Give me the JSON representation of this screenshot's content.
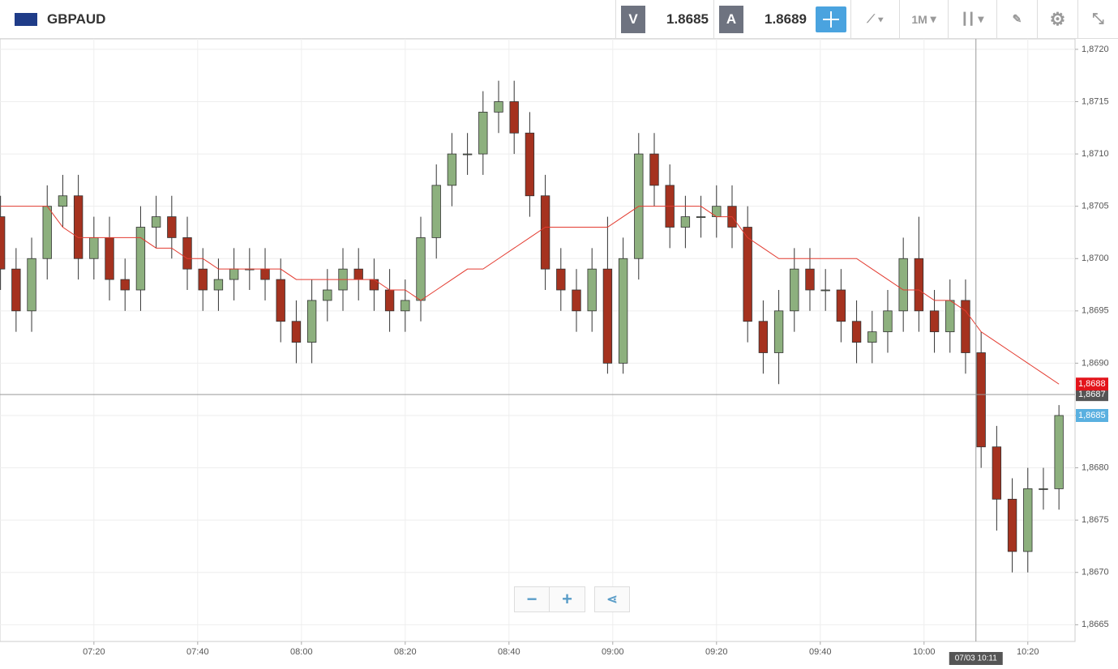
{
  "toolbar": {
    "symbol": "GBPAUD",
    "bid_label": "V",
    "bid": "1.8685",
    "ask_label": "A",
    "ask": "1.8689",
    "timeframe": "1M"
  },
  "chart_data": {
    "type": "candlestick",
    "x": [
      2,
      5,
      8,
      11,
      14,
      17,
      20,
      23,
      26,
      29,
      32,
      35,
      38,
      41,
      44,
      47,
      50,
      53,
      56,
      59,
      62,
      65,
      68,
      71,
      74,
      77,
      80,
      83,
      86,
      89,
      92,
      95,
      98,
      101,
      104,
      107,
      110,
      113,
      116,
      119,
      122,
      125,
      128,
      131,
      134,
      137,
      140,
      143,
      146,
      149,
      152,
      155,
      158,
      161,
      164,
      167,
      170,
      173,
      176,
      179,
      182,
      185,
      188,
      191,
      194,
      197,
      200,
      203,
      206
    ],
    "open": [
      1.8704,
      1.8699,
      1.8695,
      1.87,
      1.8705,
      1.8706,
      1.87,
      1.8702,
      1.8698,
      1.8697,
      1.8703,
      1.8704,
      1.8702,
      1.8699,
      1.8697,
      1.8698,
      1.8699,
      1.8699,
      1.8698,
      1.8694,
      1.8692,
      1.8696,
      1.8697,
      1.8699,
      1.8698,
      1.8697,
      1.8695,
      1.8696,
      1.8702,
      1.8707,
      1.871,
      1.871,
      1.8714,
      1.8715,
      1.8712,
      1.8706,
      1.8699,
      1.8697,
      1.8695,
      1.8699,
      1.869,
      1.87,
      1.871,
      1.8707,
      1.8703,
      1.8704,
      1.8704,
      1.8705,
      1.8703,
      1.8694,
      1.8691,
      1.8695,
      1.8699,
      1.8697,
      1.8697,
      1.8694,
      1.8692,
      1.8693,
      1.8695,
      1.87,
      1.8695,
      1.8693,
      1.8696,
      1.8691,
      1.8682,
      1.8677,
      1.8672,
      1.8678,
      1.8678
    ],
    "high": [
      1.8706,
      1.8701,
      1.8702,
      1.8707,
      1.8708,
      1.8708,
      1.8704,
      1.8704,
      1.87,
      1.8705,
      1.8706,
      1.8706,
      1.8704,
      1.8701,
      1.87,
      1.8701,
      1.8701,
      1.8701,
      1.87,
      1.8696,
      1.8698,
      1.8699,
      1.8701,
      1.8701,
      1.87,
      1.8699,
      1.8698,
      1.8704,
      1.8709,
      1.8712,
      1.8712,
      1.8716,
      1.8717,
      1.8717,
      1.8714,
      1.8708,
      1.8701,
      1.8699,
      1.8701,
      1.8704,
      1.8702,
      1.8712,
      1.8712,
      1.8709,
      1.8706,
      1.8706,
      1.8707,
      1.8707,
      1.8705,
      1.8696,
      1.8697,
      1.8701,
      1.8701,
      1.8699,
      1.8699,
      1.8696,
      1.8695,
      1.8697,
      1.8702,
      1.8704,
      1.8697,
      1.8698,
      1.8698,
      1.8693,
      1.8684,
      1.8679,
      1.868,
      1.868,
      1.8686
    ],
    "low": [
      1.8697,
      1.8693,
      1.8693,
      1.8698,
      1.8703,
      1.8698,
      1.8698,
      1.8696,
      1.8695,
      1.8695,
      1.8701,
      1.87,
      1.8697,
      1.8695,
      1.8695,
      1.8696,
      1.8697,
      1.8696,
      1.8692,
      1.869,
      1.869,
      1.8694,
      1.8695,
      1.8696,
      1.8695,
      1.8693,
      1.8693,
      1.8694,
      1.87,
      1.8705,
      1.8708,
      1.8708,
      1.8712,
      1.871,
      1.8704,
      1.8697,
      1.8695,
      1.8693,
      1.8693,
      1.8689,
      1.8689,
      1.8698,
      1.8705,
      1.8701,
      1.8701,
      1.8702,
      1.8702,
      1.8701,
      1.8692,
      1.8689,
      1.8688,
      1.8693,
      1.8695,
      1.8695,
      1.8692,
      1.869,
      1.869,
      1.8691,
      1.8693,
      1.8693,
      1.8691,
      1.8691,
      1.8689,
      1.868,
      1.8674,
      1.867,
      1.867,
      1.8676,
      1.8676
    ],
    "close": [
      1.8699,
      1.8695,
      1.87,
      1.8705,
      1.8706,
      1.87,
      1.8702,
      1.8698,
      1.8697,
      1.8703,
      1.8704,
      1.8702,
      1.8699,
      1.8697,
      1.8698,
      1.8699,
      1.8699,
      1.8698,
      1.8694,
      1.8692,
      1.8696,
      1.8697,
      1.8699,
      1.8698,
      1.8697,
      1.8695,
      1.8696,
      1.8702,
      1.8707,
      1.871,
      1.871,
      1.8714,
      1.8715,
      1.8712,
      1.8706,
      1.8699,
      1.8697,
      1.8695,
      1.8699,
      1.869,
      1.87,
      1.871,
      1.8707,
      1.8703,
      1.8704,
      1.8704,
      1.8705,
      1.8703,
      1.8694,
      1.8691,
      1.8695,
      1.8699,
      1.8697,
      1.8697,
      1.8694,
      1.8692,
      1.8693,
      1.8695,
      1.87,
      1.8695,
      1.8693,
      1.8696,
      1.8691,
      1.8682,
      1.8677,
      1.8672,
      1.8678,
      1.8678,
      1.8685
    ],
    "up_color": "#8db07e",
    "down_color": "#a5321f",
    "overlay": {
      "color": "#e33b30",
      "values": [
        1.8705,
        1.8705,
        1.8705,
        1.8705,
        1.8703,
        1.8702,
        1.8702,
        1.8702,
        1.8702,
        1.8702,
        1.8701,
        1.8701,
        1.87,
        1.87,
        1.8699,
        1.8699,
        1.8699,
        1.8699,
        1.8699,
        1.8698,
        1.8698,
        1.8698,
        1.8698,
        1.8698,
        1.8698,
        1.8697,
        1.8697,
        1.8696,
        1.8697,
        1.8698,
        1.8699,
        1.8699,
        1.87,
        1.8701,
        1.8702,
        1.8703,
        1.8703,
        1.8703,
        1.8703,
        1.8703,
        1.8704,
        1.8705,
        1.8705,
        1.8705,
        1.8705,
        1.8705,
        1.8704,
        1.8704,
        1.8702,
        1.8701,
        1.87,
        1.87,
        1.87,
        1.87,
        1.87,
        1.87,
        1.8699,
        1.8698,
        1.8697,
        1.8697,
        1.8696,
        1.8696,
        1.8695,
        1.8693,
        1.8692,
        1.8691,
        1.869,
        1.8689,
        1.8688
      ]
    },
    "xlim": [
      1.9,
      209.1
    ],
    "xticks": [
      {
        "value": 20,
        "label": "07:20"
      },
      {
        "value": 40,
        "label": "07:40"
      },
      {
        "value": 60,
        "label": "08:00"
      },
      {
        "value": 80,
        "label": "08:20"
      },
      {
        "value": 100,
        "label": "08:40"
      },
      {
        "value": 120,
        "label": "09:00"
      },
      {
        "value": 140,
        "label": "09:20"
      },
      {
        "value": 160,
        "label": "09:40"
      },
      {
        "value": 180,
        "label": "10:00"
      },
      {
        "value": 200,
        "label": "10:20"
      }
    ],
    "ylim": [
      1.86634,
      1.8721
    ],
    "yticks": [
      {
        "value": 1.8665,
        "label": "1,8665"
      },
      {
        "value": 1.867,
        "label": "1,8670"
      },
      {
        "value": 1.8675,
        "label": "1,8675"
      },
      {
        "value": 1.868,
        "label": "1,8680"
      },
      {
        "value": 1.8685,
        "label": "1,8685"
      },
      {
        "value": 1.869,
        "label": "1,8690"
      },
      {
        "value": 1.8695,
        "label": "1,8695"
      },
      {
        "value": 1.87,
        "label": "1,8700"
      },
      {
        "value": 1.8705,
        "label": "1,8705"
      },
      {
        "value": 1.871,
        "label": "1,8710"
      },
      {
        "value": 1.8715,
        "label": "1,8715"
      },
      {
        "value": 1.872,
        "label": "1,8720"
      }
    ],
    "grid": true,
    "price_labels": [
      {
        "value": 1.8688,
        "label": "1,8688",
        "color": "#e3141b"
      },
      {
        "value": 1.8685,
        "label": "1,8685",
        "color": "#5ab0e0"
      }
    ],
    "crosshair": {
      "x": {
        "value": 190,
        "label": "07/03 10:11"
      },
      "y": {
        "value": 1.8687,
        "label": "1,8687"
      }
    }
  }
}
